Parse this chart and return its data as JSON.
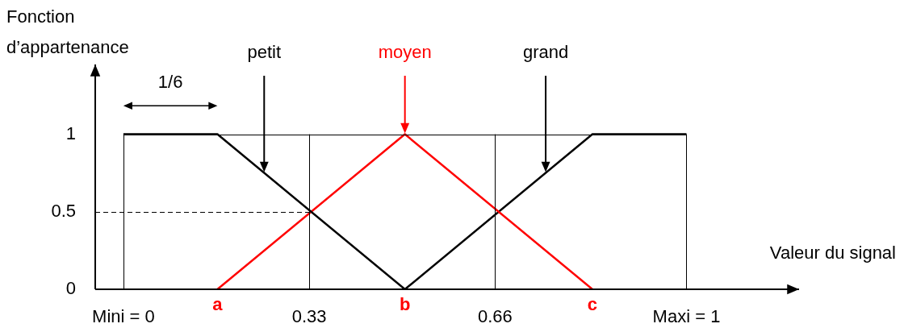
{
  "chart_data": {
    "type": "line",
    "xlabel": "Valeur du signal",
    "ylabel": "Fonction d’appartenance",
    "xlim": [
      -0.05,
      1.2
    ],
    "xticks": [
      {
        "value": 0,
        "label": "Mini = 0"
      },
      0.33,
      0.66,
      {
        "value": 1,
        "label": "Maxi = 1"
      }
    ],
    "ylim": [
      0,
      1.45
    ],
    "yticks": [
      0,
      0.5,
      1
    ],
    "legend": false,
    "marker": "none",
    "series": [
      {
        "name": "petit",
        "color": "#000000",
        "x": [
          0,
          0.167,
          0.5
        ],
        "values": [
          1,
          1,
          0
        ]
      },
      {
        "name": "moyen",
        "color": "#ff0000",
        "x": [
          0.167,
          0.5,
          0.833
        ],
        "values": [
          0,
          1,
          0
        ]
      },
      {
        "name": "grand",
        "color": "#000000",
        "x": [
          0.5,
          0.833,
          1
        ],
        "values": [
          0,
          1,
          1
        ]
      }
    ],
    "ref_lines": [
      {
        "axis": "y",
        "value": 1
      },
      {
        "axis": "x",
        "value": 0
      },
      {
        "axis": "x",
        "value": 0.33
      },
      {
        "axis": "x",
        "value": 0.66
      },
      {
        "axis": "x",
        "value": 1
      },
      {
        "axis": "y",
        "value": 0.5,
        "line_style": "dashed"
      }
    ],
    "annotations": [
      "1/6",
      {
        "text": "a",
        "x": 0.167,
        "y": 0
      },
      {
        "text": "b",
        "x": 0.5,
        "y": 0
      },
      {
        "text": "c",
        "x": 0.833,
        "y": 0
      }
    ]
  }
}
